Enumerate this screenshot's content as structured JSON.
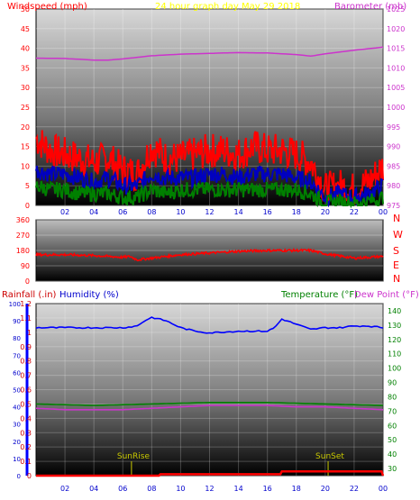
{
  "header": {
    "windspeed_label": "Windspeed (mph)",
    "title": "24 hour graph day   May 29 2018",
    "barometer_label": "Barometer (mb)"
  },
  "colors": {
    "wind_gust": "#ff0000",
    "wind_avg": "#0000c0",
    "wind_low": "#008000",
    "barometer": "#cc33cc",
    "direction": "#ff0000",
    "humidity": "#0000ff",
    "temperature": "#008000",
    "dewpoint": "#cc33cc",
    "rainfall": "#ff0000",
    "sun_marker": "#c8c800",
    "title": "#ffff00"
  },
  "bottom_header": {
    "rainfall_label": "Rainfall (.in)",
    "humidity_label": "Humidity (%)",
    "temperature_label": "Temperature (°F)",
    "dewpoint_label": "Dew Point (°F)"
  },
  "annotations": {
    "sunrise": "SunRise",
    "sunset": "SunSet"
  },
  "chart_data": [
    {
      "type": "line",
      "name": "wind-barometer",
      "x_ticks": [
        "02",
        "04",
        "06",
        "08",
        "10",
        "12",
        "14",
        "16",
        "18",
        "20",
        "22",
        "00"
      ],
      "y_left_ticks": [
        "0",
        "5",
        "10",
        "15",
        "20",
        "25",
        "30",
        "35",
        "40",
        "45",
        "50"
      ],
      "ylim_left": [
        0,
        50
      ],
      "y_right_ticks": [
        "975",
        "980",
        "985",
        "990",
        "995",
        "1000",
        "1005",
        "1010",
        "1015",
        "1020",
        "1025"
      ],
      "ylim_right": [
        975,
        1025
      ],
      "series": [
        {
          "role": "barometer",
          "axis": "right",
          "x": [
            0,
            2,
            4,
            5,
            6,
            8,
            10,
            12,
            14,
            16,
            18,
            19,
            20,
            22,
            24
          ],
          "values": [
            1012.5,
            1012.4,
            1012.0,
            1012.0,
            1012.3,
            1013.1,
            1013.5,
            1013.7,
            1013.9,
            1013.8,
            1013.4,
            1013.0,
            1013.6,
            1014.5,
            1015.3
          ]
        },
        {
          "role": "wind_gust",
          "axis": "left",
          "x": [
            0,
            1,
            2,
            3,
            4,
            5,
            6,
            7,
            8,
            9,
            10,
            11,
            12,
            13,
            14,
            15,
            16,
            17,
            18,
            19,
            20,
            21,
            22,
            23,
            24
          ],
          "values": [
            17,
            14,
            13,
            12,
            11,
            12,
            9,
            8,
            15,
            12,
            12,
            13,
            14,
            14,
            13,
            15,
            14,
            14,
            13,
            11,
            4,
            5,
            4,
            6,
            10
          ]
        },
        {
          "role": "wind_avg",
          "axis": "left",
          "x": [
            0,
            1,
            2,
            3,
            4,
            5,
            6,
            7,
            8,
            9,
            10,
            11,
            12,
            13,
            14,
            15,
            16,
            17,
            18,
            19,
            20,
            21,
            22,
            23,
            24
          ],
          "values": [
            9,
            8,
            8,
            7,
            6,
            7,
            5,
            5,
            8,
            7,
            7,
            7,
            8,
            8,
            7,
            8,
            8,
            8,
            7,
            6,
            2,
            3,
            2,
            3,
            5
          ]
        },
        {
          "role": "wind_low",
          "axis": "left",
          "x": [
            0,
            1,
            2,
            3,
            4,
            5,
            6,
            7,
            8,
            9,
            10,
            11,
            12,
            13,
            14,
            15,
            16,
            17,
            18,
            19,
            20,
            21,
            22,
            23,
            24
          ],
          "values": [
            5,
            4,
            4,
            3,
            3,
            3,
            2,
            2,
            4,
            3,
            4,
            4,
            4,
            4,
            4,
            4,
            4,
            4,
            4,
            3,
            0.5,
            1,
            0.5,
            1,
            2
          ]
        }
      ]
    },
    {
      "type": "line",
      "name": "wind-direction",
      "x_ticks": [],
      "y_ticks": [
        "0",
        "90",
        "180",
        "270",
        "360"
      ],
      "ylim": [
        0,
        360
      ],
      "compass_labels": [
        "N",
        "W",
        "S",
        "E",
        "N"
      ],
      "series": [
        {
          "role": "direction",
          "x": [
            0,
            2,
            4,
            6,
            6.5,
            7,
            8,
            10,
            12,
            14,
            16,
            18,
            19,
            20,
            22,
            24
          ],
          "values": [
            155,
            155,
            150,
            140,
            145,
            125,
            135,
            155,
            165,
            175,
            180,
            180,
            180,
            160,
            135,
            145
          ]
        }
      ]
    },
    {
      "type": "line",
      "name": "rain-humidity-temperature",
      "x_ticks": [
        "02",
        "04",
        "06",
        "08",
        "10",
        "12",
        "14",
        "16",
        "18",
        "20",
        "22",
        "00"
      ],
      "y_left_ticks": [
        "0",
        "0.1",
        "0.2",
        "0.3",
        "0.4",
        "0.5",
        "0.6",
        "0.7",
        "0.8",
        "0.9",
        "1",
        "1.1",
        "1.2"
      ],
      "ylim_left": [
        0,
        1.2
      ],
      "y_humidity_ticks": [
        "0",
        "10",
        "20",
        "30",
        "40",
        "50",
        "60",
        "70",
        "80",
        "90",
        "100"
      ],
      "ylim_humidity": [
        0,
        100
      ],
      "y_right_ticks": [
        "30",
        "40",
        "50",
        "60",
        "70",
        "80",
        "90",
        "100",
        "110",
        "120",
        "130",
        "140"
      ],
      "ylim_right": [
        25,
        145
      ],
      "series": [
        {
          "role": "humidity",
          "axis": "humidity",
          "x": [
            0,
            2,
            4,
            6,
            7,
            7.5,
            8,
            9,
            10,
            11,
            12,
            14,
            15,
            16,
            16.5,
            17,
            18,
            19,
            20,
            21,
            22,
            23,
            24
          ],
          "values": [
            86,
            86,
            86,
            86,
            87,
            90,
            92,
            90,
            86,
            84,
            83,
            84,
            84,
            84,
            86,
            91,
            88,
            85,
            86,
            86,
            87,
            87,
            86
          ]
        },
        {
          "role": "temperature",
          "axis": "right",
          "x": [
            0,
            4,
            8,
            12,
            16,
            20,
            24
          ],
          "values": [
            75,
            74,
            75,
            76,
            76,
            75,
            74
          ]
        },
        {
          "role": "dewpoint",
          "axis": "right",
          "x": [
            0,
            2,
            4,
            6,
            8,
            10,
            12,
            14,
            16,
            18,
            20,
            22,
            24
          ],
          "values": [
            72,
            71,
            71,
            71,
            72,
            73,
            74,
            74,
            74,
            73,
            73,
            72,
            71
          ]
        },
        {
          "role": "rainfall",
          "axis": "left",
          "x": [
            0,
            8.5,
            8.6,
            16.9,
            17.0,
            23.9,
            24
          ],
          "values": [
            0,
            0,
            0.01,
            0.01,
            0.03,
            0.03,
            0.0
          ]
        }
      ],
      "sunrise_hour": 6.6,
      "sunset_hour": 20.2
    }
  ]
}
